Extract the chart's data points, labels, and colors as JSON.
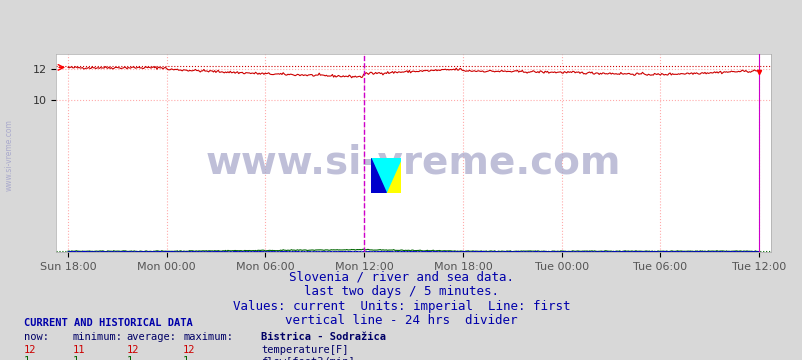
{
  "title": "Bistrica - Sodražica",
  "title_color": "#0000cc",
  "bg_color": "#d8d8d8",
  "plot_bg_color": "#ffffff",
  "grid_color": "#ffaaaa",
  "grid_style": ":",
  "x_labels": [
    "Sun 18:00",
    "Mon 00:00",
    "Mon 06:00",
    "Mon 12:00",
    "Mon 18:00",
    "Tue 00:00",
    "Tue 06:00",
    "Tue 12:00"
  ],
  "x_positions": [
    0.0,
    0.25,
    0.5,
    0.75,
    1.0,
    1.25,
    1.5,
    1.75
  ],
  "y_min": 0,
  "y_max": 13,
  "y_ticks": [
    10,
    12
  ],
  "watermark_text": "www.si-vreme.com",
  "watermark_color": "#aaaacc",
  "watermark_fontsize": 28,
  "side_color": "#aaaacc",
  "vertical_line_color": "#cc00cc",
  "right_line_color": "#cc00cc",
  "temp_line_color": "#cc0000",
  "temp_max_dotted_color": "#cc0000",
  "flow_line_color": "#006600",
  "flow_max_dotted_color": "#006600",
  "height_line_color": "#0000cc",
  "footer_lines": [
    "Slovenia / river and sea data.",
    "last two days / 5 minutes.",
    "Values: current  Units: imperial  Line: first",
    "vertical line - 24 hrs  divider"
  ],
  "footer_color": "#0000aa",
  "footer_fontsize": 9,
  "legend_title": "Bistrica - Sodražica",
  "legend_title_color": "#000066",
  "table_header_color": "#000066",
  "temp_values": {
    "now": 12,
    "min": 11,
    "avg": 12,
    "max": 12
  },
  "flow_values": {
    "now": 1,
    "min": 1,
    "avg": 1,
    "max": 1
  },
  "label_color": "#555555",
  "n_points": 576
}
